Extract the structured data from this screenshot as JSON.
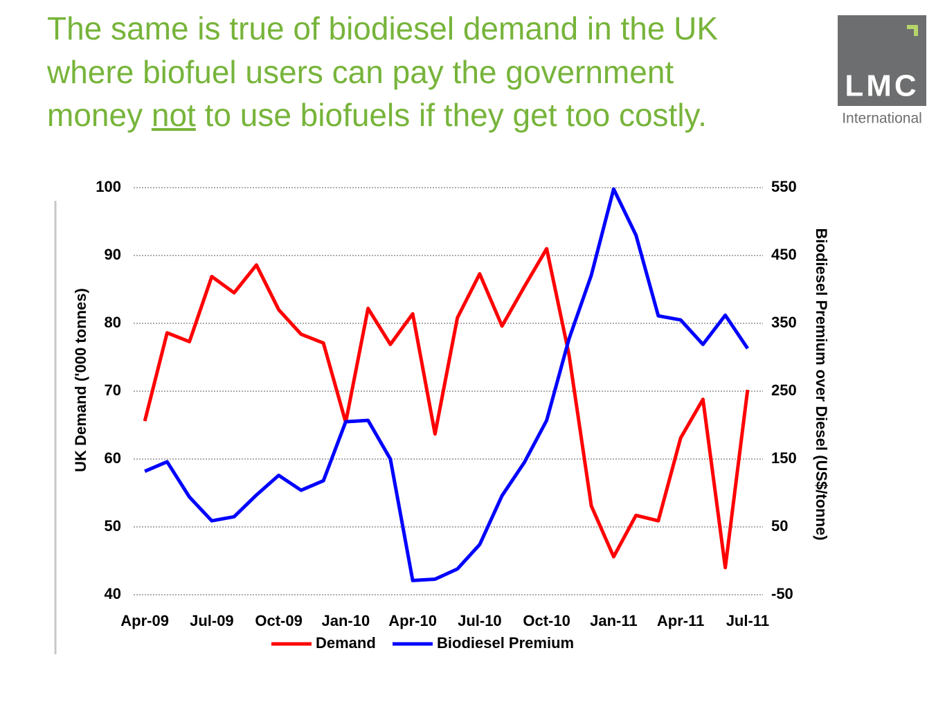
{
  "title": {
    "line1": "The same is true of biodiesel demand in the UK",
    "line2": "where biofuel users can pay the government",
    "line3_before": "money",
    "line3_underlined": "not",
    "line3_after": "to use biofuels if they get too costly."
  },
  "logo": {
    "name": "LMC",
    "subtitle": "International"
  },
  "chart_data": {
    "type": "line",
    "categories": [
      "Apr-09",
      null,
      null,
      "Jul-09",
      null,
      null,
      "Oct-09",
      null,
      null,
      "Jan-10",
      null,
      null,
      "Apr-10",
      null,
      null,
      "Jul-10",
      null,
      null,
      "Oct-10",
      null,
      null,
      "Jan-11",
      null,
      null,
      "Apr-11",
      null,
      null,
      "Jul-11"
    ],
    "series": [
      {
        "name": "Demand",
        "color": "#ff0000",
        "values": [
          65.6,
          78.6,
          77.3,
          86.9,
          84.5,
          88.6,
          82.0,
          78.4,
          77.1,
          65.4,
          82.2,
          76.9,
          81.4,
          63.7,
          80.8,
          87.3,
          79.6,
          85.4,
          91.0,
          75.4,
          53.1,
          45.6,
          51.7,
          50.9,
          63.1,
          68.8,
          44.0,
          70.2
        ]
      },
      {
        "name": "Biodiesel Premium",
        "color": "#0000ff",
        "axis": "y2",
        "values": [
          132,
          146,
          94,
          59,
          65,
          97,
          126,
          104,
          118,
          205,
          207,
          150,
          -29,
          -27,
          -12,
          24,
          96,
          145,
          207,
          327,
          421,
          548,
          480,
          361,
          355,
          319,
          362,
          313
        ]
      }
    ],
    "ylabel": "UK Demand ('000 tonnes)",
    "y2label": "Biodiesel Premium over Diesel (US$/tonne)",
    "ylim": [
      40,
      100
    ],
    "yticks": [
      40,
      50,
      60,
      70,
      80,
      90,
      100
    ],
    "y2lim": [
      -50,
      550
    ],
    "y2ticks": [
      -50,
      50,
      150,
      250,
      350,
      450,
      550
    ],
    "grid": true,
    "legend": "bottom"
  }
}
